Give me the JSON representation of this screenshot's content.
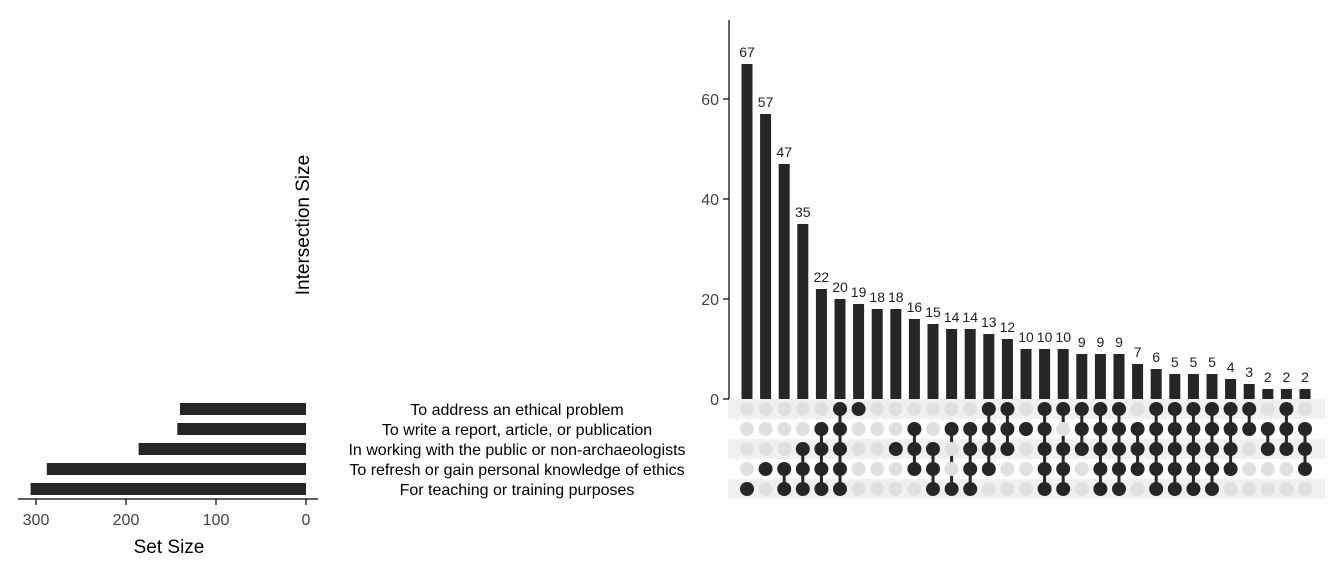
{
  "chart_data": {
    "type": "upset",
    "sets": [
      "To address an ethical problem",
      "To write a report, article, or publication",
      "In working with the public or non-archaeologists",
      "To refresh or gain personal knowledge of ethics",
      "For teaching or training purposes"
    ],
    "set_sizes": [
      140,
      143,
      186,
      288,
      306
    ],
    "set_axis": {
      "label": "Set Size",
      "ticks": [
        300,
        200,
        100,
        0
      ],
      "range": [
        320,
        0
      ]
    },
    "intersection_axis": {
      "label": "Intersection Size",
      "ticks": [
        0,
        20,
        40,
        60
      ],
      "range": [
        0,
        75
      ]
    },
    "intersections": [
      {
        "size": 67,
        "sets": [
          4
        ]
      },
      {
        "size": 57,
        "sets": [
          3
        ]
      },
      {
        "size": 47,
        "sets": [
          3,
          4
        ]
      },
      {
        "size": 35,
        "sets": [
          2,
          3,
          4
        ]
      },
      {
        "size": 22,
        "sets": [
          1,
          2,
          3,
          4
        ]
      },
      {
        "size": 20,
        "sets": [
          0,
          1,
          2,
          3,
          4
        ]
      },
      {
        "size": 19,
        "sets": [
          0
        ]
      },
      {
        "size": 18,
        "sets": []
      },
      {
        "size": 18,
        "sets": [
          2
        ]
      },
      {
        "size": 16,
        "sets": [
          1,
          2,
          3
        ]
      },
      {
        "size": 15,
        "sets": [
          2,
          3,
          4
        ]
      },
      {
        "size": 14,
        "sets": [
          1,
          4
        ]
      },
      {
        "size": 14,
        "sets": [
          1,
          2,
          3,
          4
        ]
      },
      {
        "size": 13,
        "sets": [
          0,
          1,
          2,
          3
        ]
      },
      {
        "size": 12,
        "sets": [
          0,
          1,
          2
        ]
      },
      {
        "size": 10,
        "sets": [
          1
        ]
      },
      {
        "size": 10,
        "sets": [
          0,
          1,
          2,
          3,
          4
        ]
      },
      {
        "size": 10,
        "sets": [
          0,
          2,
          3,
          4
        ]
      },
      {
        "size": 9,
        "sets": [
          0,
          1,
          2
        ]
      },
      {
        "size": 9,
        "sets": [
          0,
          1,
          2,
          3,
          4
        ]
      },
      {
        "size": 9,
        "sets": [
          0,
          1,
          2,
          3,
          4
        ]
      },
      {
        "size": 7,
        "sets": [
          1,
          2,
          3
        ]
      },
      {
        "size": 6,
        "sets": [
          0,
          1,
          2,
          3,
          4
        ]
      },
      {
        "size": 5,
        "sets": [
          0,
          1,
          2,
          3,
          4
        ]
      },
      {
        "size": 5,
        "sets": [
          0,
          1,
          2,
          3,
          4
        ]
      },
      {
        "size": 5,
        "sets": [
          0,
          1,
          2,
          3,
          4
        ]
      },
      {
        "size": 4,
        "sets": [
          0,
          1,
          2,
          3
        ]
      },
      {
        "size": 3,
        "sets": [
          0,
          1
        ]
      },
      {
        "size": 2,
        "sets": [
          1,
          2
        ]
      },
      {
        "size": 2,
        "sets": [
          0,
          1,
          2
        ]
      },
      {
        "size": 2,
        "sets": [
          1,
          2,
          3
        ]
      }
    ],
    "colors": {
      "bar": "#262626",
      "dot_active": "#262626",
      "dot_inactive": "#e0e0e0",
      "band": "#f0f0f0"
    }
  }
}
